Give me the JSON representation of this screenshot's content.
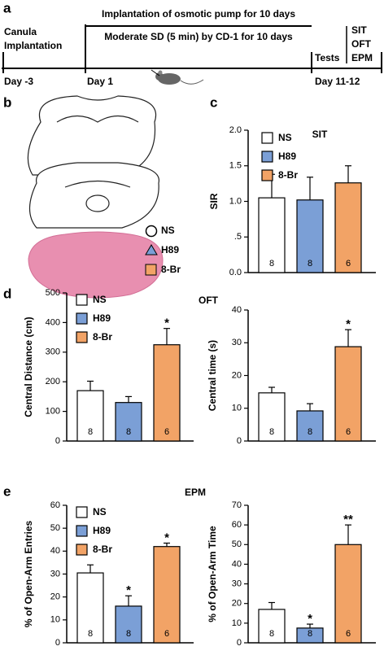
{
  "panels": [
    "a",
    "b",
    "c",
    "d",
    "e"
  ],
  "timeline": {
    "top_label": "Implantation of osmotic pump for 10 days",
    "mid_label": "Moderate SD (5 min) by CD-1 for 10 days",
    "start_label": [
      "Canula",
      "Implantation"
    ],
    "tests_label": "Tests",
    "tests": [
      "SIT",
      "OFT",
      "EPM"
    ],
    "days": [
      "Day -3",
      "Day 1",
      "Day 11-12"
    ]
  },
  "groups": [
    {
      "name": "NS",
      "color": "#ffffff"
    },
    {
      "name": "H89",
      "color": "#7b9fd6"
    },
    {
      "name": "8-Br",
      "color": "#f2a366"
    }
  ],
  "chart_data": [
    {
      "type": "bar",
      "title": "SIT",
      "ylabel": "SIR",
      "legend": true,
      "values": [
        1.05,
        1.02,
        1.26
      ],
      "errors": [
        0.33,
        0.32,
        0.24
      ],
      "n": [
        8,
        8,
        6
      ],
      "annotations": [
        null,
        null,
        null
      ],
      "ylim": [
        0,
        2
      ],
      "yticks": [
        {
          "value": 0,
          "label": "0.0"
        },
        {
          "value": 0.5,
          "label": ".5"
        },
        {
          "value": 1,
          "label": "1.0"
        },
        1.5,
        {
          "value": 2,
          "label": "2.0"
        }
      ]
    },
    {
      "type": "bar",
      "title": "OFT",
      "ylabel": "Central Distance (cm)",
      "legend": true,
      "values": [
        170,
        130,
        325
      ],
      "errors": [
        32,
        20,
        55
      ],
      "n": [
        8,
        8,
        6
      ],
      "annotations": [
        null,
        null,
        "*"
      ],
      "ylim": [
        0,
        500
      ],
      "yticks": [
        0,
        100,
        200,
        300,
        400,
        500
      ]
    },
    {
      "type": "bar",
      "ylabel": "Central time (s)",
      "legend": false,
      "values": [
        14.7,
        9.2,
        28.8
      ],
      "errors": [
        1.7,
        2.2,
        5.2
      ],
      "n": [
        8,
        8,
        6
      ],
      "annotations": [
        null,
        null,
        "*"
      ],
      "ylim": [
        0,
        40
      ],
      "yticks": [
        0,
        10,
        20,
        30,
        40
      ]
    },
    {
      "type": "bar",
      "title": "EPM",
      "ylabel": "% of Open-Arm Entries",
      "legend": true,
      "values": [
        30.5,
        16,
        42
      ],
      "errors": [
        3.5,
        4.5,
        1.5
      ],
      "n": [
        8,
        8,
        6
      ],
      "annotations": [
        null,
        "*",
        "*"
      ],
      "ylim": [
        0,
        60
      ],
      "yticks": [
        0,
        10,
        20,
        30,
        40,
        50,
        60
      ]
    },
    {
      "type": "bar",
      "ylabel": "% of Open-Arm Time",
      "legend": false,
      "values": [
        17,
        7.5,
        50
      ],
      "errors": [
        3.5,
        2,
        10
      ],
      "n": [
        8,
        8,
        6
      ],
      "annotations": [
        null,
        "*",
        "**"
      ],
      "ylim": [
        0,
        70
      ],
      "yticks": [
        0,
        10,
        20,
        30,
        40,
        50,
        60,
        70
      ]
    }
  ]
}
